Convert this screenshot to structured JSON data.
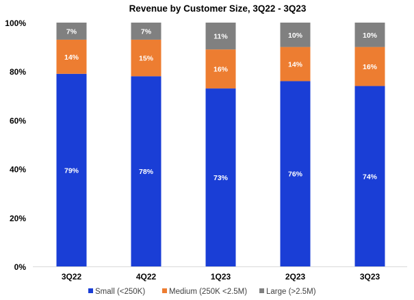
{
  "chart_data": {
    "type": "bar",
    "stacked": true,
    "title": "Revenue by Customer Size, 3Q22 - 3Q23",
    "xlabel": "",
    "ylabel": "",
    "ylim": [
      0,
      100
    ],
    "yticks": [
      "0%",
      "20%",
      "40%",
      "60%",
      "80%",
      "100%"
    ],
    "categories": [
      "3Q22",
      "4Q22",
      "1Q23",
      "2Q23",
      "3Q23"
    ],
    "series": [
      {
        "name": "Small (<250K)",
        "color": "#1a3ed6",
        "values": [
          79,
          78,
          73,
          76,
          74
        ]
      },
      {
        "name": "Medium (250K <2.5M)",
        "color": "#ed7d31",
        "values": [
          14,
          15,
          16,
          14,
          16
        ]
      },
      {
        "name": "Large (>2.5M)",
        "color": "#808080",
        "values": [
          7,
          7,
          11,
          10,
          10
        ]
      }
    ],
    "legend_position": "bottom",
    "grid": false
  }
}
